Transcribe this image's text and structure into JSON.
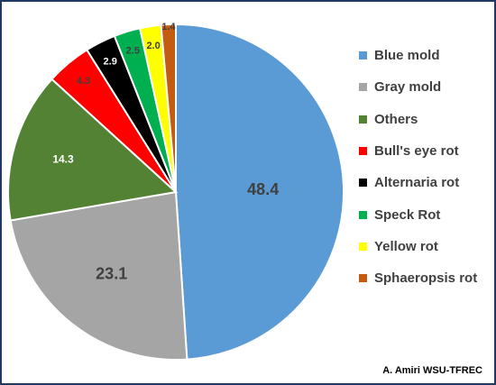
{
  "chart_data": {
    "type": "pie",
    "categories": [
      "Blue mold",
      "Gray mold",
      "Others",
      "Bull's eye rot",
      "Alternaria rot",
      "Speck Rot",
      "Yellow rot",
      "Sphaeropsis rot"
    ],
    "values": [
      48.4,
      23.1,
      14.3,
      4.3,
      2.9,
      2.5,
      2.0,
      1.4
    ],
    "value_labels": [
      "48.4",
      "23.1",
      "14.3",
      "4.3",
      "2.9",
      "2.5",
      "2.0",
      "1.4"
    ],
    "colors": [
      "#5b9bd5",
      "#a5a5a5",
      "#548235",
      "#ff0000",
      "#000000",
      "#00b050",
      "#ffff00",
      "#c55a11"
    ],
    "label_colors": [
      "#404040",
      "#404040",
      "#ffffff",
      "#404040",
      "#ffffff",
      "#404040",
      "#404040",
      "#404040"
    ],
    "start_angle_deg": 0,
    "direction": "clockwise",
    "legend_position": "right"
  },
  "credit": "A. Amiri WSU-TFREC"
}
